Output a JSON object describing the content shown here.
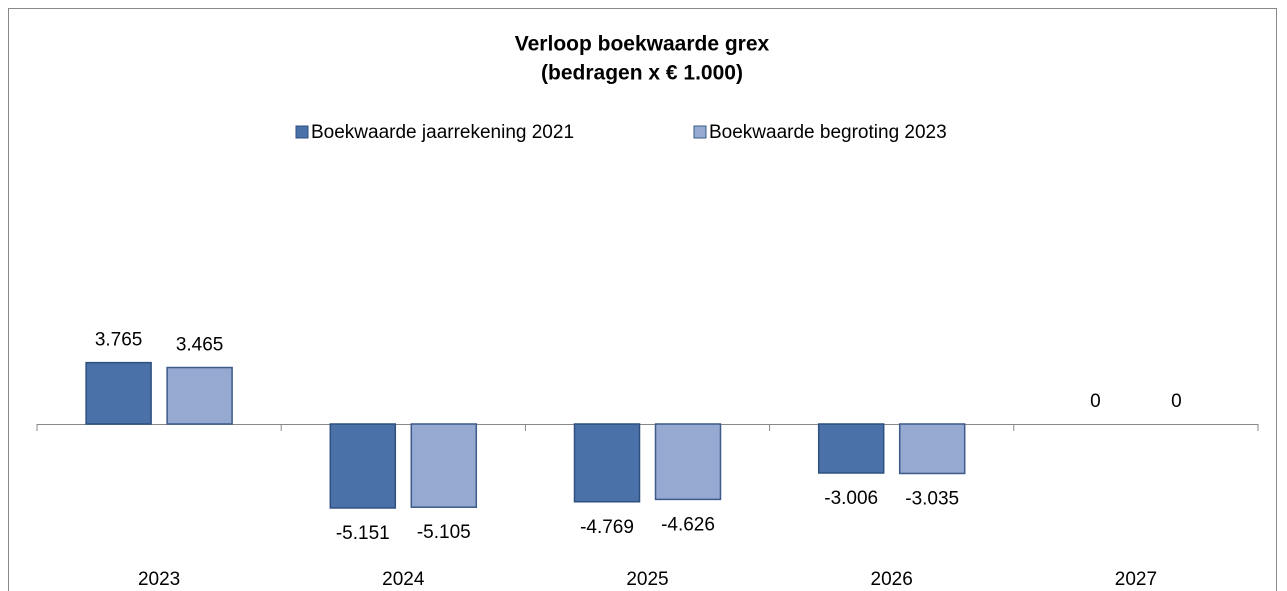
{
  "chart_data": {
    "type": "bar",
    "title": "Verloop boekwaarde grex",
    "subtitle": "(bedragen x € 1.000)",
    "categories": [
      "2023",
      "2024",
      "2025",
      "2026",
      "2027"
    ],
    "series": [
      {
        "name": "Boekwaarde jaarrekening 2021",
        "color": "#4a72a8",
        "values": [
          3765,
          -5151,
          -4769,
          -3006,
          0
        ],
        "value_labels": [
          "3.765",
          "-5.151",
          "-4.769",
          "-3.006",
          "0"
        ]
      },
      {
        "name": "Boekwaarde begroting 2023",
        "color": "#95a9d1",
        "values": [
          3465,
          -5105,
          -4626,
          -3035,
          0
        ],
        "value_labels": [
          "3.465",
          "-5.105",
          "-4.626",
          "-3.035",
          "0"
        ]
      }
    ],
    "legend": "top"
  }
}
